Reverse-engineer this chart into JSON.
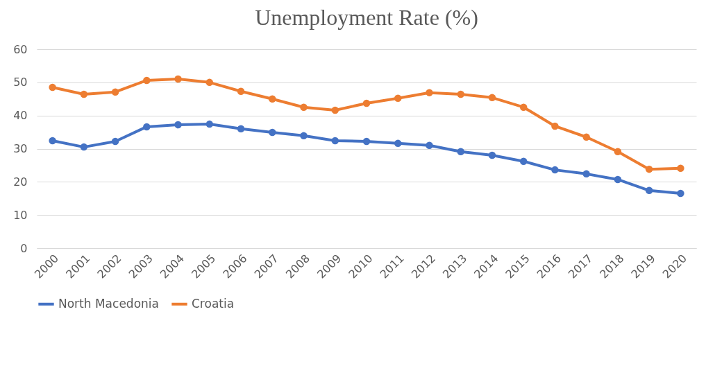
{
  "chart_data": {
    "type": "line",
    "title": "Unemployment Rate (%)",
    "categories": [
      "2000",
      "2001",
      "2002",
      "2003",
      "2004",
      "2005",
      "2006",
      "2007",
      "2008",
      "2009",
      "2010",
      "2011",
      "2012",
      "2013",
      "2014",
      "2015",
      "2016",
      "2017",
      "2018",
      "2019",
      "2020"
    ],
    "series": [
      {
        "name": "North Macedonia",
        "color": "#4472c4",
        "values": [
          32.4,
          30.5,
          32.2,
          36.6,
          37.2,
          37.4,
          36.0,
          34.9,
          33.9,
          32.4,
          32.2,
          31.6,
          31.0,
          29.1,
          28.0,
          26.2,
          23.6,
          22.4,
          20.7,
          17.4,
          16.5
        ]
      },
      {
        "name": "Croatia",
        "color": "#ed7d31",
        "values": [
          48.5,
          46.4,
          47.1,
          50.6,
          51.0,
          50.0,
          47.3,
          45.0,
          42.5,
          41.6,
          43.7,
          45.2,
          46.9,
          46.4,
          45.4,
          42.5,
          36.8,
          33.5,
          29.1,
          23.8,
          24.1
        ]
      }
    ],
    "ylim": [
      0,
      60
    ],
    "yticks": [
      0,
      10,
      20,
      30,
      40,
      50,
      60
    ],
    "grid": "y",
    "legend": "bottom",
    "marker": "circle",
    "line_style": "solid"
  }
}
